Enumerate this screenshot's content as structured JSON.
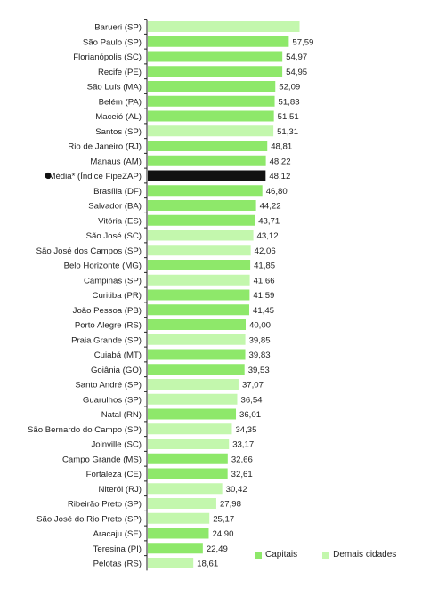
{
  "chart_data": {
    "type": "bar",
    "orientation": "horizontal",
    "xlim": [
      0,
      60
    ],
    "grid": false,
    "legend_position": "bottom-right",
    "colors": {
      "capitais": "#8ee86a",
      "demais": "#c3f7ad",
      "media": "#111111"
    },
    "legend": [
      {
        "key": "capitais",
        "label": "Capitais"
      },
      {
        "key": "demais",
        "label": "Demais cidades"
      }
    ],
    "bars": [
      {
        "label": "Barueri (SP)",
        "value": 62.0,
        "value_label": "",
        "group": "demais"
      },
      {
        "label": "São Paulo (SP)",
        "value": 57.59,
        "value_label": "57,59",
        "group": "capitais"
      },
      {
        "label": "Florianópolis (SC)",
        "value": 54.97,
        "value_label": "54,97",
        "group": "capitais"
      },
      {
        "label": "Recife (PE)",
        "value": 54.95,
        "value_label": "54,95",
        "group": "capitais"
      },
      {
        "label": "São Luís (MA)",
        "value": 52.09,
        "value_label": "52,09",
        "group": "capitais"
      },
      {
        "label": "Belém (PA)",
        "value": 51.83,
        "value_label": "51,83",
        "group": "capitais"
      },
      {
        "label": "Maceió (AL)",
        "value": 51.51,
        "value_label": "51,51",
        "group": "capitais"
      },
      {
        "label": "Santos (SP)",
        "value": 51.31,
        "value_label": "51,31",
        "group": "demais"
      },
      {
        "label": "Rio de Janeiro (RJ)",
        "value": 48.81,
        "value_label": "48,81",
        "group": "capitais"
      },
      {
        "label": "Manaus (AM)",
        "value": 48.22,
        "value_label": "48,22",
        "group": "capitais"
      },
      {
        "label": "Média* (Índice FipeZAP)",
        "value": 48.12,
        "value_label": "48,12",
        "group": "media",
        "marker": true
      },
      {
        "label": "Brasília (DF)",
        "value": 46.8,
        "value_label": "46,80",
        "group": "capitais"
      },
      {
        "label": "Salvador (BA)",
        "value": 44.22,
        "value_label": "44,22",
        "group": "capitais"
      },
      {
        "label": "Vitória (ES)",
        "value": 43.71,
        "value_label": "43,71",
        "group": "capitais"
      },
      {
        "label": "São José (SC)",
        "value": 43.12,
        "value_label": "43,12",
        "group": "demais"
      },
      {
        "label": "São José dos Campos (SP)",
        "value": 42.06,
        "value_label": "42,06",
        "group": "demais"
      },
      {
        "label": "Belo Horizonte (MG)",
        "value": 41.85,
        "value_label": "41,85",
        "group": "capitais"
      },
      {
        "label": "Campinas (SP)",
        "value": 41.66,
        "value_label": "41,66",
        "group": "demais"
      },
      {
        "label": "Curitiba (PR)",
        "value": 41.59,
        "value_label": "41,59",
        "group": "capitais"
      },
      {
        "label": "João Pessoa (PB)",
        "value": 41.45,
        "value_label": "41,45",
        "group": "capitais"
      },
      {
        "label": "Porto Alegre (RS)",
        "value": 40.0,
        "value_label": "40,00",
        "group": "capitais"
      },
      {
        "label": "Praia Grande (SP)",
        "value": 39.85,
        "value_label": "39,85",
        "group": "demais"
      },
      {
        "label": "Cuiabá (MT)",
        "value": 39.83,
        "value_label": "39,83",
        "group": "capitais"
      },
      {
        "label": "Goiânia (GO)",
        "value": 39.53,
        "value_label": "39,53",
        "group": "capitais"
      },
      {
        "label": "Santo André (SP)",
        "value": 37.07,
        "value_label": "37,07",
        "group": "demais"
      },
      {
        "label": "Guarulhos (SP)",
        "value": 36.54,
        "value_label": "36,54",
        "group": "demais"
      },
      {
        "label": "Natal (RN)",
        "value": 36.01,
        "value_label": "36,01",
        "group": "capitais"
      },
      {
        "label": "São Bernardo do Campo (SP)",
        "value": 34.35,
        "value_label": "34,35",
        "group": "demais"
      },
      {
        "label": "Joinville (SC)",
        "value": 33.17,
        "value_label": "33,17",
        "group": "demais"
      },
      {
        "label": "Campo Grande (MS)",
        "value": 32.66,
        "value_label": "32,66",
        "group": "capitais"
      },
      {
        "label": "Fortaleza (CE)",
        "value": 32.61,
        "value_label": "32,61",
        "group": "capitais"
      },
      {
        "label": "Niterói (RJ)",
        "value": 30.42,
        "value_label": "30,42",
        "group": "demais"
      },
      {
        "label": "Ribeirão Preto (SP)",
        "value": 27.98,
        "value_label": "27,98",
        "group": "demais"
      },
      {
        "label": "São José do Rio Preto (SP)",
        "value": 25.17,
        "value_label": "25,17",
        "group": "demais"
      },
      {
        "label": "Aracaju (SE)",
        "value": 24.9,
        "value_label": "24,90",
        "group": "capitais"
      },
      {
        "label": "Teresina (PI)",
        "value": 22.49,
        "value_label": "22,49",
        "group": "capitais"
      },
      {
        "label": "Pelotas (RS)",
        "value": 18.61,
        "value_label": "18,61",
        "group": "demais"
      }
    ]
  }
}
